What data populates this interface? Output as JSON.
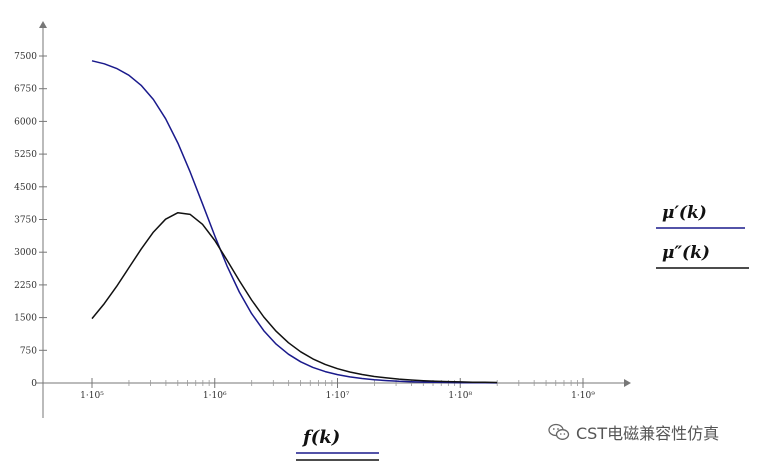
{
  "chart_data": {
    "type": "line",
    "xscale": "log",
    "xlim": [
      100000,
      1000000000
    ],
    "ylim": [
      0,
      7500
    ],
    "x_ticks": [
      {
        "value": 100000,
        "label": "1·10⁵"
      },
      {
        "value": 1000000,
        "label": "1·10⁶"
      },
      {
        "value": 10000000,
        "label": "1·10⁷"
      },
      {
        "value": 100000000,
        "label": "1·10⁸"
      },
      {
        "value": 1000000000,
        "label": "1·10⁹"
      }
    ],
    "y_ticks": [
      0,
      750,
      1500,
      2250,
      3000,
      3750,
      4500,
      5250,
      6000,
      6750,
      7500
    ],
    "xlabel": "f(k)",
    "grid": false,
    "legend_position": "right",
    "series": [
      {
        "name": "μ′(k)",
        "color": "#1a1a8c",
        "x": [
          100000,
          125893,
          158489,
          199526,
          251189,
          316228,
          398107,
          501187,
          630957,
          794328,
          1000000,
          1258925,
          1584893,
          1995262,
          2511886,
          3162278,
          3981072,
          5011872,
          6309573,
          7943282,
          10000000,
          12589254,
          15848932,
          19952623,
          25118864,
          31622777,
          39810717,
          50118723,
          63095734,
          79432823,
          100000000,
          125892541,
          158489319,
          199526231
        ],
        "values": [
          7389,
          7321,
          7216,
          7059,
          6829,
          6502,
          6062,
          5502,
          4838,
          4109,
          3373,
          2686,
          2087,
          1592,
          1199,
          893,
          661,
          487,
          358,
          262,
          192,
          140,
          103,
          75,
          55,
          40,
          29,
          21,
          16,
          11,
          8,
          6,
          5,
          3
        ]
      },
      {
        "name": "μ″(k)",
        "color": "#111111",
        "x": [
          100000,
          125893,
          158489,
          199526,
          251189,
          316228,
          398107,
          501187,
          630957,
          794328,
          1000000,
          1258925,
          1584893,
          1995262,
          2511886,
          3162278,
          3981072,
          5011872,
          6309573,
          7943282,
          10000000,
          12589254,
          15848932,
          19952623,
          25118864,
          31622777,
          39810717,
          50118723,
          63095734,
          79432823,
          100000000,
          125892541,
          158489319,
          199526231
        ],
        "values": [
          1477,
          1820,
          2212,
          2639,
          3069,
          3460,
          3757,
          3905,
          3867,
          3640,
          3268,
          2818,
          2348,
          1904,
          1513,
          1188,
          925,
          716,
          553,
          426,
          328,
          253,
          195,
          150,
          116,
          89,
          69,
          53,
          41,
          32,
          25,
          19,
          15,
          11
        ]
      }
    ]
  },
  "watermark": {
    "text": "CST电磁兼容性仿真",
    "icon": "wechat-icon"
  }
}
